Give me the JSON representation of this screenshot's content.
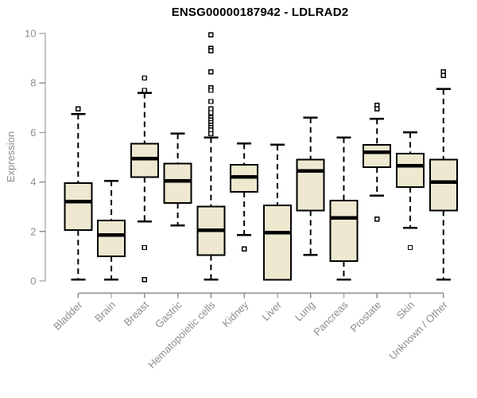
{
  "chart_data": {
    "type": "boxplot",
    "title": "ENSG00000187942 - LDLRAD2",
    "ylabel": "Expression",
    "xlabel": "",
    "ylim": [
      0,
      10
    ],
    "yticks": [
      0,
      2,
      4,
      6,
      8,
      10
    ],
    "grid": false,
    "legend": "none",
    "colors": {
      "box_fill": "#EDE8CF",
      "box_stroke": "#000000",
      "median": "#000000",
      "whisker": "#000000",
      "axis": "#8E8E8E",
      "tick_label": "#8E8E8E",
      "title": "#000000",
      "background": "#ffffff"
    },
    "categories": [
      "Bladder",
      "Brain",
      "Breast",
      "Gastric",
      "Hematopoietic cells",
      "Kidney",
      "Liver",
      "Lung",
      "Pancreas",
      "Prostate",
      "Skin",
      "Unknown / Other"
    ],
    "series": [
      {
        "category": "Bladder",
        "whisker_low": 0.05,
        "q1": 2.05,
        "median": 3.2,
        "q3": 3.95,
        "whisker_high": 6.75,
        "outliers": [
          6.95
        ]
      },
      {
        "category": "Brain",
        "whisker_low": 0.05,
        "q1": 1.0,
        "median": 1.85,
        "q3": 2.45,
        "whisker_high": 4.05,
        "outliers": []
      },
      {
        "category": "Breast",
        "whisker_low": 2.4,
        "q1": 4.2,
        "median": 4.95,
        "q3": 5.55,
        "whisker_high": 7.6,
        "outliers": [
          8.2,
          7.7,
          1.35,
          0.05
        ]
      },
      {
        "category": "Gastric",
        "whisker_low": 2.25,
        "q1": 3.15,
        "median": 4.05,
        "q3": 4.75,
        "whisker_high": 5.95,
        "outliers": []
      },
      {
        "category": "Hematopoietic cells",
        "whisker_low": 0.05,
        "q1": 1.05,
        "median": 2.05,
        "q3": 3.0,
        "whisker_high": 5.8,
        "outliers": [
          9.95,
          9.4,
          9.3,
          8.45,
          7.8,
          7.7,
          7.25,
          6.95,
          6.8,
          6.6,
          6.5,
          6.4,
          6.3,
          6.2,
          6.1,
          5.95
        ]
      },
      {
        "category": "Kidney",
        "whisker_low": 1.85,
        "q1": 3.6,
        "median": 4.2,
        "q3": 4.7,
        "whisker_high": 5.55,
        "outliers": [
          1.3
        ]
      },
      {
        "category": "Liver",
        "whisker_low": 0.05,
        "q1": 0.05,
        "median": 1.95,
        "q3": 3.05,
        "whisker_high": 5.5,
        "outliers": []
      },
      {
        "category": "Lung",
        "whisker_low": 1.05,
        "q1": 2.85,
        "median": 4.45,
        "q3": 4.9,
        "whisker_high": 6.6,
        "outliers": []
      },
      {
        "category": "Pancreas",
        "whisker_low": 0.05,
        "q1": 0.8,
        "median": 2.55,
        "q3": 3.25,
        "whisker_high": 5.8,
        "outliers": []
      },
      {
        "category": "Prostate",
        "whisker_low": 3.45,
        "q1": 4.6,
        "median": 5.2,
        "q3": 5.5,
        "whisker_high": 6.55,
        "outliers": [
          7.1,
          6.95,
          2.5
        ]
      },
      {
        "category": "Skin",
        "whisker_low": 2.15,
        "q1": 3.8,
        "median": 4.65,
        "q3": 5.15,
        "whisker_high": 6.0,
        "outliers": [
          1.35
        ]
      },
      {
        "category": "Unknown / Other",
        "whisker_low": 0.05,
        "q1": 2.85,
        "median": 4.0,
        "q3": 4.9,
        "whisker_high": 7.75,
        "outliers": [
          8.45,
          8.3
        ]
      }
    ]
  }
}
